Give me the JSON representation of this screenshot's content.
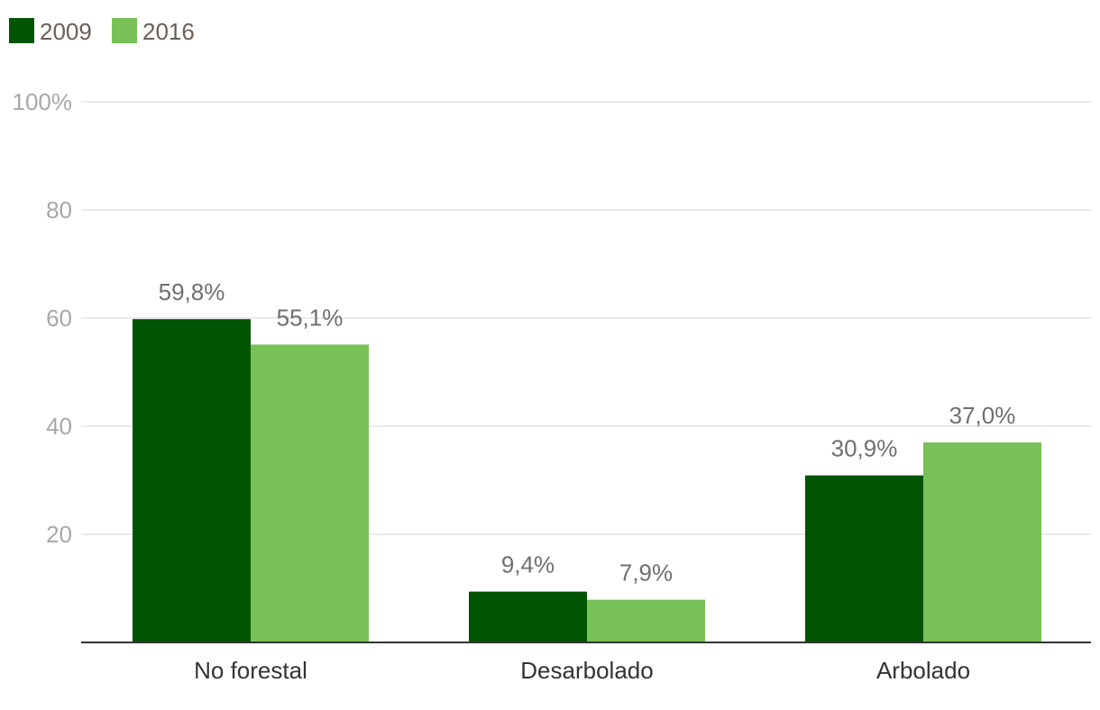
{
  "chart_data": {
    "type": "bar",
    "categories": [
      "No forestal",
      "Desarbolado",
      "Arbolado"
    ],
    "series": [
      {
        "name": "2009",
        "values": [
          59.8,
          9.4,
          30.9
        ],
        "labels": [
          "59,8%",
          "9,4%",
          "30,9%"
        ],
        "color": "#015402"
      },
      {
        "name": "2016",
        "values": [
          55.1,
          7.9,
          37.0
        ],
        "labels": [
          "55,1%",
          "7,9%",
          "37,0%"
        ],
        "color": "#78c058"
      }
    ],
    "yticks": [
      {
        "value": 20,
        "label": "20"
      },
      {
        "value": 40,
        "label": "40"
      },
      {
        "value": 60,
        "label": "60"
      },
      {
        "value": 80,
        "label": "80"
      },
      {
        "value": 100,
        "label": "100%"
      }
    ],
    "ylim": [
      0,
      100
    ],
    "title": "",
    "xlabel": "",
    "ylabel": "",
    "grid": true,
    "legend": "top-left"
  }
}
